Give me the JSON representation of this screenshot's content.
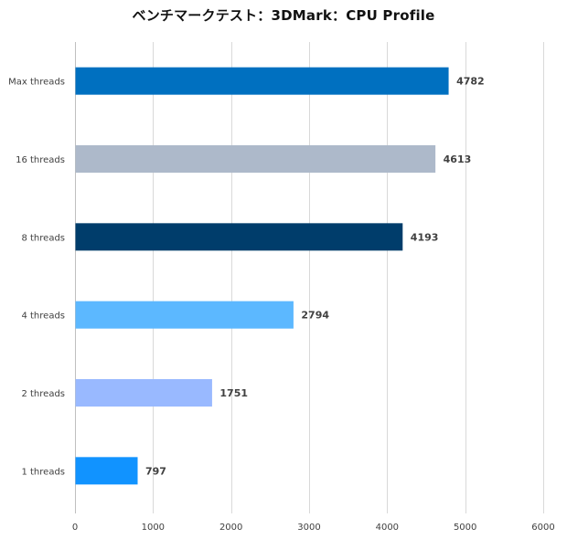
{
  "chart_data": {
    "type": "bar",
    "orientation": "horizontal",
    "title": "ベンチマークテスト：3DMark：CPU Profile",
    "categories": [
      "Max threads",
      "16 threads",
      "8 threads",
      "4 threads",
      "2 threads",
      "1 threads"
    ],
    "values": [
      4782,
      4613,
      4193,
      2794,
      1751,
      797
    ],
    "colors": [
      "#0070c0",
      "#adb9ca",
      "#003d6b",
      "#5cb8ff",
      "#99b9ff",
      "#1193ff"
    ],
    "xlim": [
      0,
      6000
    ],
    "x_ticks": [
      0,
      1000,
      2000,
      3000,
      4000,
      5000,
      6000
    ],
    "xlabel": "",
    "ylabel": "",
    "grid": "vertical",
    "legend": "none"
  }
}
